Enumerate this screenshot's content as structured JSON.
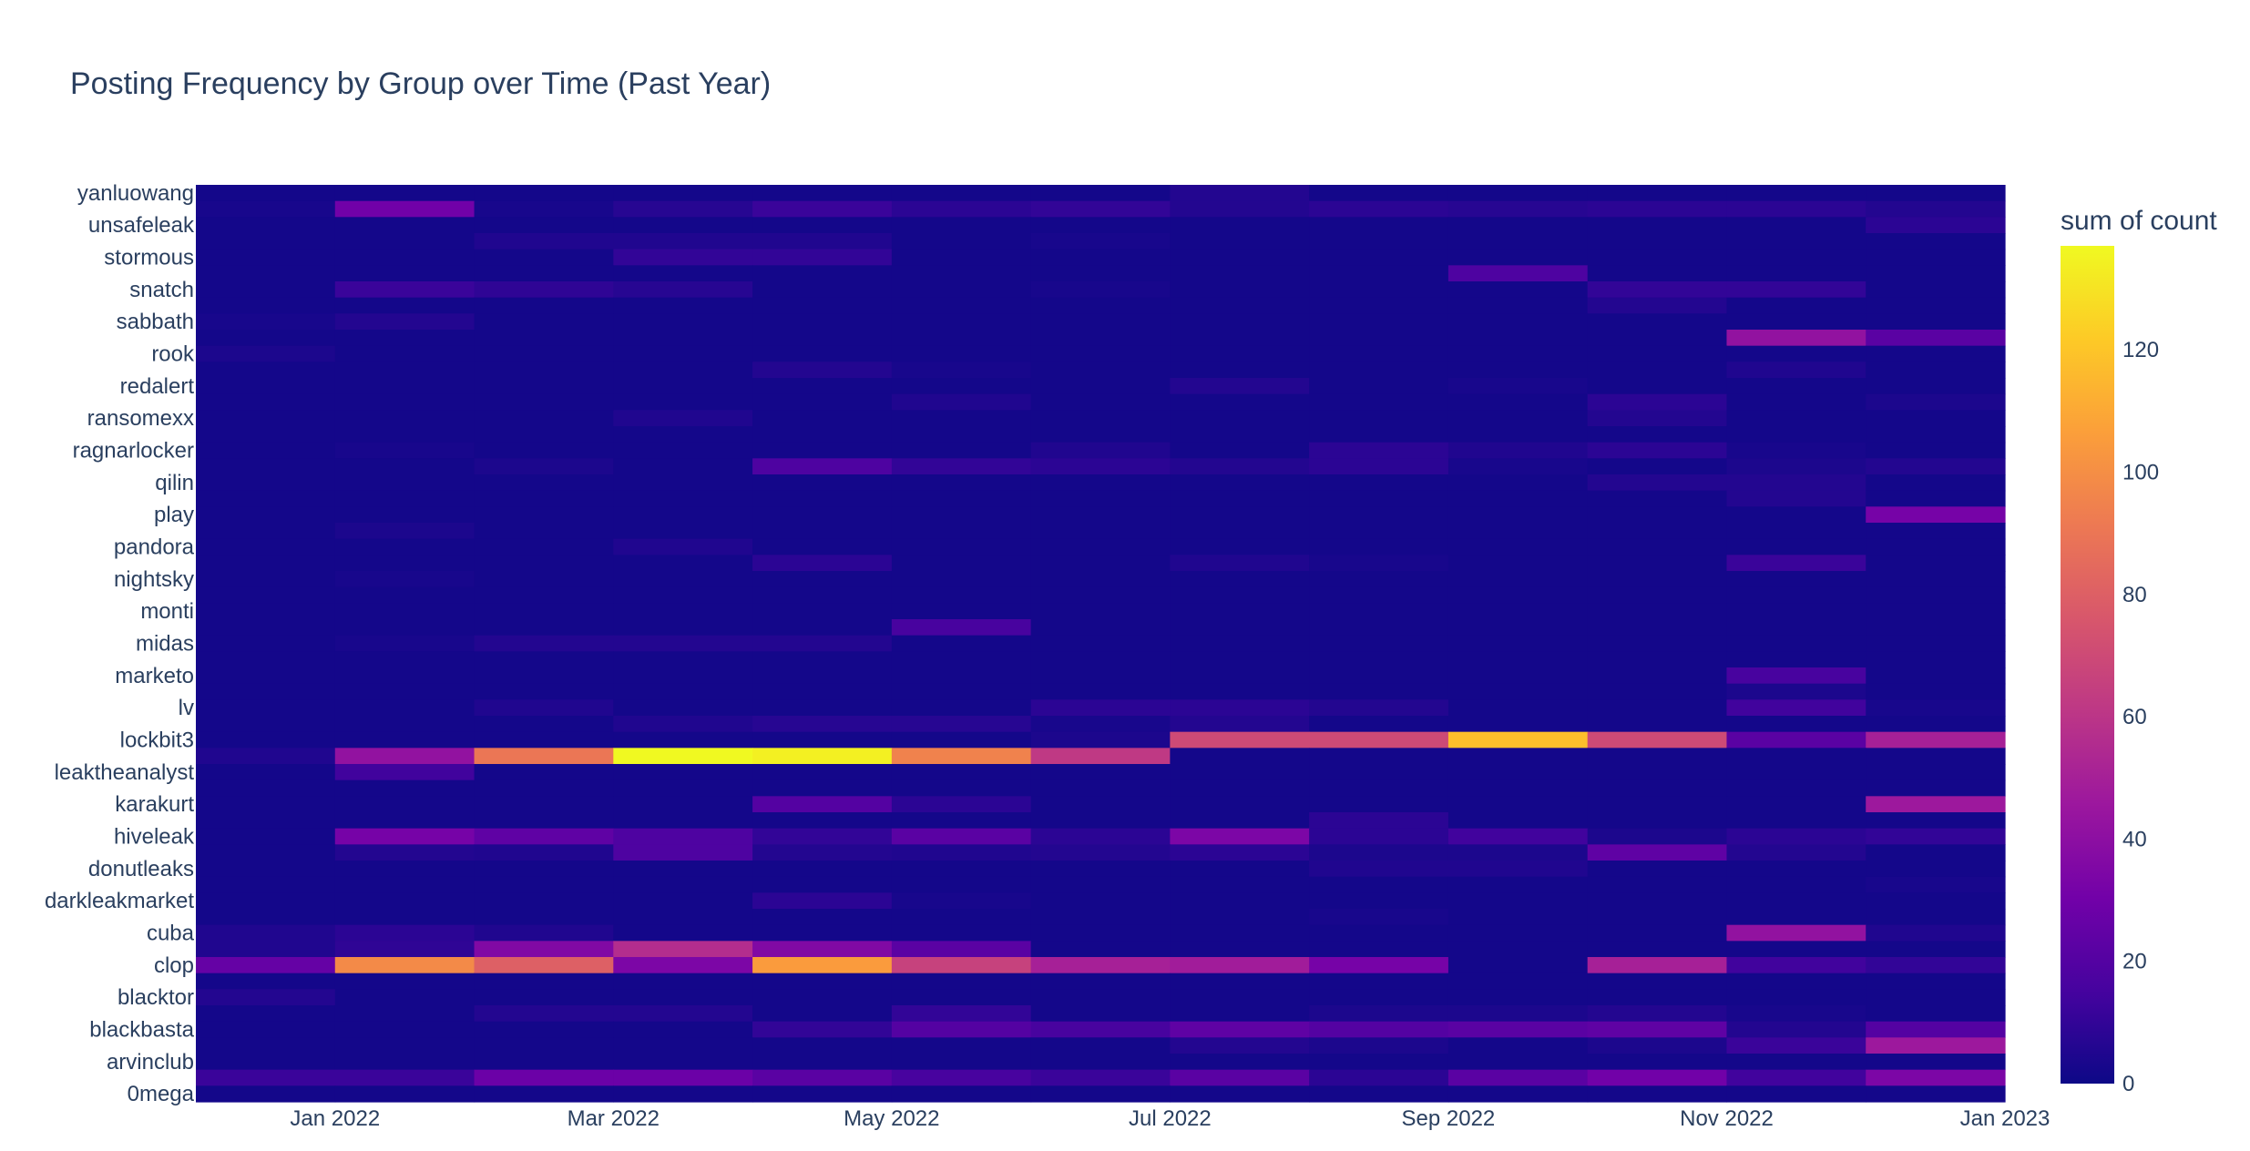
{
  "chart_data": {
    "type": "heatmap",
    "title": "Posting Frequency by Group over Time (Past Year)",
    "colorbar_title": "sum of count",
    "colorscale": "plasma",
    "zrange": [
      0,
      137
    ],
    "colorbar_ticks": [
      "0",
      "20",
      "40",
      "60",
      "80",
      "100",
      "120"
    ],
    "colorbar_tick_values": [
      0,
      20,
      40,
      60,
      80,
      100,
      120
    ],
    "x_tick_labels": [
      "Jan 2022",
      "Mar 2022",
      "May 2022",
      "Jul 2022",
      "Sep 2022",
      "Nov 2022",
      "Jan 2023"
    ],
    "x": [
      "Dec 2021",
      "Jan 2022",
      "Feb 2022",
      "Mar 2022",
      "Apr 2022",
      "May 2022",
      "Jun 2022",
      "Jul 2022",
      "Aug 2022",
      "Sep 2022",
      "Oct 2022",
      "Nov 2022",
      "Dec 2022"
    ],
    "y_tick_labels": [
      "yanluowang",
      "unsafeleak",
      "stormous",
      "snatch",
      "sabbath",
      "rook",
      "redalert",
      "ransomexx",
      "ragnarlocker",
      "qilin",
      "play",
      "pandora",
      "nightsky",
      "monti",
      "midas",
      "marketo",
      "lv",
      "lockbit3",
      "leaktheanalyst",
      "karakurt",
      "hiveleak",
      "donutleaks",
      "darkleakmarket",
      "cuba",
      "clop",
      "blacktor",
      "blackbasta",
      "arvinclub",
      "0mega"
    ],
    "rows_top_to_bottom": [
      {
        "group": "yanluowang",
        "values": [
          2,
          2,
          2,
          2,
          2,
          2,
          2,
          6,
          2,
          2,
          2,
          2,
          2
        ]
      },
      {
        "group": "",
        "values": [
          3,
          30,
          3,
          7,
          12,
          8,
          10,
          6,
          8,
          7,
          8,
          8,
          6
        ]
      },
      {
        "group": "unsafeleak",
        "values": [
          2,
          2,
          2,
          2,
          2,
          2,
          2,
          2,
          2,
          2,
          2,
          2,
          8
        ]
      },
      {
        "group": "",
        "values": [
          2,
          2,
          5,
          5,
          5,
          2,
          3,
          2,
          2,
          2,
          2,
          2,
          2
        ]
      },
      {
        "group": "stormous",
        "values": [
          2,
          2,
          2,
          10,
          10,
          2,
          2,
          2,
          2,
          2,
          2,
          2,
          2
        ]
      },
      {
        "group": "",
        "values": [
          2,
          2,
          2,
          2,
          2,
          2,
          2,
          2,
          2,
          18,
          2,
          2,
          2
        ]
      },
      {
        "group": "snatch",
        "values": [
          2,
          12,
          9,
          7,
          2,
          2,
          3,
          2,
          2,
          2,
          10,
          10,
          2
        ]
      },
      {
        "group": "",
        "values": [
          2,
          2,
          2,
          2,
          2,
          2,
          2,
          2,
          2,
          2,
          6,
          2,
          2
        ]
      },
      {
        "group": "sabbath",
        "values": [
          3,
          6,
          2,
          2,
          2,
          2,
          2,
          2,
          2,
          2,
          2,
          2,
          2
        ]
      },
      {
        "group": "",
        "values": [
          2,
          2,
          2,
          2,
          2,
          2,
          2,
          2,
          2,
          2,
          2,
          42,
          22
        ]
      },
      {
        "group": "rook",
        "values": [
          4,
          2,
          2,
          2,
          2,
          2,
          2,
          2,
          2,
          2,
          2,
          2,
          2
        ]
      },
      {
        "group": "",
        "values": [
          2,
          2,
          2,
          2,
          6,
          3,
          2,
          2,
          2,
          2,
          2,
          5,
          2
        ]
      },
      {
        "group": "redalert",
        "values": [
          2,
          2,
          2,
          2,
          2,
          2,
          2,
          6,
          2,
          3,
          2,
          2,
          2
        ]
      },
      {
        "group": "",
        "values": [
          2,
          2,
          2,
          2,
          2,
          5,
          2,
          2,
          2,
          2,
          8,
          2,
          4
        ]
      },
      {
        "group": "ransomexx",
        "values": [
          2,
          2,
          2,
          5,
          2,
          2,
          2,
          2,
          2,
          2,
          6,
          2,
          2
        ]
      },
      {
        "group": "",
        "values": [
          2,
          2,
          2,
          2,
          2,
          2,
          2,
          2,
          2,
          2,
          2,
          2,
          2
        ]
      },
      {
        "group": "ragnarlocker",
        "values": [
          2,
          3,
          2,
          2,
          2,
          2,
          5,
          2,
          8,
          5,
          8,
          3,
          2
        ]
      },
      {
        "group": "",
        "values": [
          2,
          2,
          4,
          2,
          18,
          10,
          8,
          6,
          8,
          3,
          2,
          4,
          6
        ]
      },
      {
        "group": "qilin",
        "values": [
          2,
          2,
          2,
          2,
          2,
          2,
          2,
          2,
          2,
          2,
          6,
          6,
          2
        ]
      },
      {
        "group": "",
        "values": [
          2,
          2,
          2,
          2,
          2,
          2,
          2,
          2,
          2,
          2,
          2,
          6,
          2
        ]
      },
      {
        "group": "play",
        "values": [
          2,
          2,
          2,
          2,
          2,
          2,
          2,
          2,
          2,
          2,
          2,
          2,
          32
        ]
      },
      {
        "group": "",
        "values": [
          2,
          4,
          2,
          2,
          2,
          2,
          2,
          2,
          2,
          2,
          2,
          2,
          2
        ]
      },
      {
        "group": "pandora",
        "values": [
          2,
          2,
          2,
          5,
          2,
          2,
          2,
          2,
          2,
          2,
          2,
          2,
          2
        ]
      },
      {
        "group": "",
        "values": [
          2,
          2,
          2,
          2,
          8,
          2,
          2,
          5,
          3,
          2,
          2,
          12,
          2
        ]
      },
      {
        "group": "nightsky",
        "values": [
          2,
          3,
          2,
          2,
          2,
          2,
          2,
          2,
          2,
          2,
          2,
          2,
          2
        ]
      },
      {
        "group": "",
        "values": [
          2,
          2,
          2,
          2,
          2,
          2,
          2,
          2,
          2,
          2,
          2,
          2,
          2
        ]
      },
      {
        "group": "monti",
        "values": [
          2,
          2,
          2,
          2,
          2,
          2,
          2,
          2,
          2,
          2,
          2,
          2,
          2
        ]
      },
      {
        "group": "",
        "values": [
          2,
          2,
          2,
          2,
          2,
          16,
          2,
          2,
          2,
          2,
          2,
          2,
          2
        ]
      },
      {
        "group": "midas",
        "values": [
          2,
          3,
          6,
          6,
          6,
          2,
          2,
          2,
          2,
          2,
          2,
          2,
          2
        ]
      },
      {
        "group": "",
        "values": [
          2,
          2,
          2,
          2,
          2,
          2,
          2,
          2,
          2,
          2,
          2,
          2,
          2
        ]
      },
      {
        "group": "marketo",
        "values": [
          2,
          2,
          2,
          2,
          2,
          2,
          2,
          2,
          2,
          2,
          2,
          16,
          2
        ]
      },
      {
        "group": "",
        "values": [
          2,
          2,
          2,
          2,
          2,
          2,
          2,
          2,
          2,
          2,
          2,
          4,
          2
        ]
      },
      {
        "group": "lv",
        "values": [
          2,
          2,
          5,
          2,
          2,
          2,
          8,
          8,
          6,
          2,
          2,
          14,
          3
        ]
      },
      {
        "group": "",
        "values": [
          2,
          2,
          2,
          5,
          7,
          7,
          3,
          6,
          2,
          2,
          2,
          2,
          2
        ]
      },
      {
        "group": "lockbit3",
        "values": [
          2,
          2,
          2,
          2,
          2,
          2,
          4,
          70,
          70,
          118,
          70,
          22,
          50
        ]
      },
      {
        "group": "",
        "values": [
          5,
          42,
          90,
          137,
          134,
          95,
          62,
          2,
          2,
          2,
          2,
          2,
          2
        ]
      },
      {
        "group": "leaktheanalyst",
        "values": [
          2,
          14,
          2,
          2,
          2,
          2,
          2,
          2,
          2,
          2,
          2,
          2,
          2
        ]
      },
      {
        "group": "",
        "values": [
          2,
          2,
          2,
          2,
          2,
          2,
          2,
          2,
          2,
          2,
          2,
          2,
          2
        ]
      },
      {
        "group": "karakurt",
        "values": [
          2,
          2,
          2,
          2,
          20,
          8,
          2,
          2,
          2,
          2,
          2,
          2,
          46
        ]
      },
      {
        "group": "",
        "values": [
          2,
          2,
          2,
          2,
          2,
          2,
          2,
          2,
          8,
          2,
          2,
          2,
          2
        ]
      },
      {
        "group": "hiveleak",
        "values": [
          2,
          32,
          24,
          18,
          10,
          22,
          8,
          34,
          8,
          14,
          4,
          8,
          10
        ]
      },
      {
        "group": "",
        "values": [
          2,
          6,
          5,
          18,
          6,
          5,
          6,
          8,
          4,
          4,
          24,
          6,
          2
        ]
      },
      {
        "group": "donutleaks",
        "values": [
          2,
          2,
          2,
          2,
          2,
          2,
          2,
          2,
          5,
          5,
          2,
          2,
          2
        ]
      },
      {
        "group": "",
        "values": [
          2,
          2,
          2,
          2,
          2,
          2,
          2,
          2,
          2,
          2,
          2,
          2,
          3
        ]
      },
      {
        "group": "darkleakmarket",
        "values": [
          2,
          2,
          2,
          2,
          8,
          3,
          2,
          2,
          2,
          2,
          2,
          2,
          2
        ]
      },
      {
        "group": "",
        "values": [
          2,
          2,
          2,
          2,
          2,
          2,
          2,
          2,
          3,
          2,
          2,
          2,
          2
        ]
      },
      {
        "group": "cuba",
        "values": [
          5,
          8,
          5,
          2,
          2,
          2,
          2,
          2,
          2,
          2,
          2,
          42,
          5
        ]
      },
      {
        "group": "",
        "values": [
          5,
          9,
          36,
          56,
          36,
          22,
          2,
          2,
          2,
          2,
          2,
          2,
          2
        ]
      },
      {
        "group": "clop",
        "values": [
          26,
          98,
          80,
          34,
          105,
          66,
          50,
          48,
          32,
          2,
          50,
          14,
          10
        ]
      },
      {
        "group": "",
        "values": [
          2,
          2,
          2,
          2,
          2,
          2,
          2,
          2,
          2,
          2,
          2,
          2,
          2
        ]
      },
      {
        "group": "blacktor",
        "values": [
          6,
          2,
          2,
          2,
          2,
          2,
          2,
          2,
          2,
          2,
          2,
          2,
          2
        ]
      },
      {
        "group": "",
        "values": [
          2,
          2,
          6,
          6,
          2,
          10,
          2,
          2,
          4,
          4,
          6,
          3,
          2
        ]
      },
      {
        "group": "blackbasta",
        "values": [
          2,
          2,
          2,
          2,
          10,
          20,
          16,
          24,
          20,
          22,
          24,
          6,
          20
        ]
      },
      {
        "group": "",
        "values": [
          2,
          2,
          2,
          2,
          2,
          2,
          2,
          6,
          4,
          2,
          4,
          12,
          46
        ]
      },
      {
        "group": "arvinclub",
        "values": [
          2,
          2,
          2,
          2,
          2,
          2,
          2,
          2,
          2,
          2,
          2,
          2,
          2
        ]
      },
      {
        "group": "",
        "values": [
          12,
          12,
          28,
          28,
          22,
          16,
          12,
          22,
          8,
          22,
          30,
          14,
          34
        ]
      },
      {
        "group": "0mega",
        "values": [
          2,
          2,
          2,
          2,
          2,
          2,
          2,
          2,
          2,
          2,
          2,
          2,
          2
        ]
      }
    ]
  }
}
